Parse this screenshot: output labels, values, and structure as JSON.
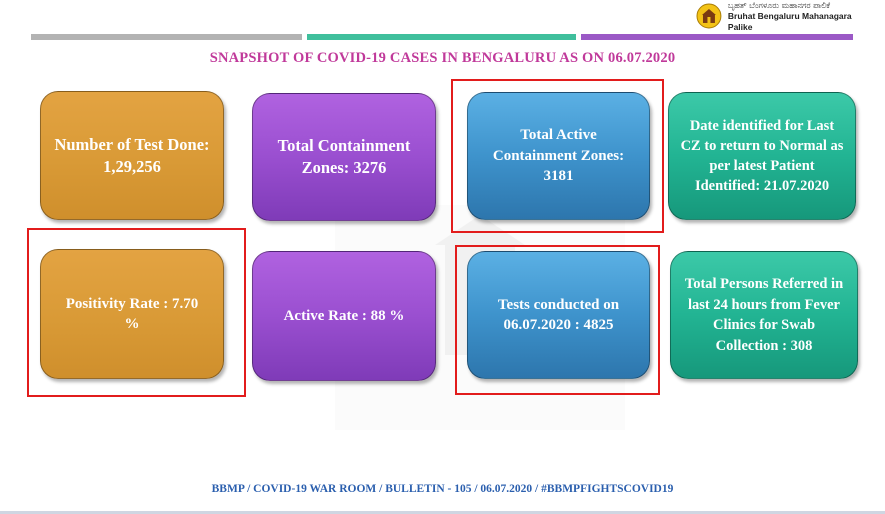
{
  "header": {
    "logo_line1": "ಬೃಹತ್ ಬೆಂಗಳೂರು ಮಹಾನಗರ ಪಾಲಿಕೆ",
    "logo_line2": "Bruhat Bengaluru Mahanagara Palike"
  },
  "title": "SNAPSHOT OF COVID-19 CASES IN BENGALURU AS ON 06.07.2020",
  "cards": {
    "tests_done": "Number of Test Done: 1,29,256",
    "containment_zones": "Total Containment Zones: 3276",
    "active_containment_zones": "Total Active Containment Zones: 3181",
    "cz_return_date": "Date identified for Last CZ to return to Normal as per latest Patient Identified: 21.07.2020",
    "positivity_rate": "Positivity Rate : 7.70 %",
    "active_rate": "Active Rate : 88 %",
    "tests_conducted": "Tests conducted on 06.07.2020 : 4825",
    "fever_clinic_referrals": "Total Persons Referred in last 24 hours from Fever Clinics for Swab Collection : 308"
  },
  "footer": "BBMP / COVID-19 WAR ROOM / BULLETIN - 105 / 06.07.2020 / #BBMPFIGHTSCOVID19",
  "colors": {
    "title": "#c0399a",
    "footer": "#2b5fae",
    "orange": "#d99a36",
    "purple": "#9a4fd0",
    "blue": "#3e93cc",
    "green": "#22b493",
    "highlight": "#e21c1c"
  }
}
